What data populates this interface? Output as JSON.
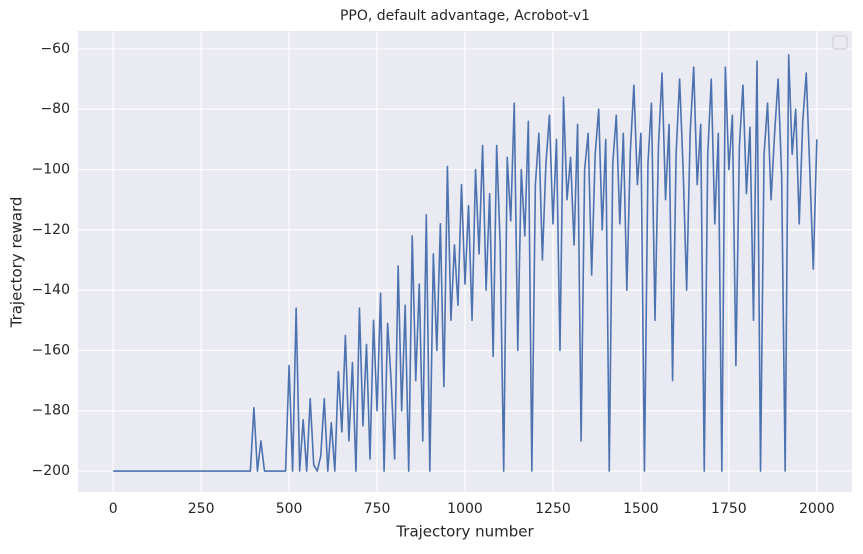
{
  "chart_data": {
    "type": "line",
    "title": "PPO, default advantage, Acrobot-v1",
    "x_label": "Trajectory number",
    "y_label": "Trajectory reward",
    "x": [
      0,
      10,
      20,
      30,
      40,
      50,
      60,
      70,
      80,
      90,
      100,
      110,
      120,
      130,
      140,
      150,
      160,
      170,
      180,
      190,
      200,
      210,
      220,
      230,
      240,
      250,
      260,
      270,
      280,
      290,
      300,
      310,
      320,
      330,
      340,
      350,
      360,
      370,
      380,
      390,
      400,
      410,
      420,
      430,
      440,
      450,
      460,
      470,
      480,
      490,
      500,
      510,
      520,
      530,
      540,
      550,
      560,
      570,
      580,
      590,
      600,
      610,
      620,
      630,
      640,
      650,
      660,
      670,
      680,
      690,
      700,
      710,
      720,
      730,
      740,
      750,
      760,
      770,
      780,
      790,
      800,
      810,
      820,
      830,
      840,
      850,
      860,
      870,
      880,
      890,
      900,
      910,
      920,
      930,
      940,
      950,
      960,
      970,
      980,
      990,
      1000,
      1010,
      1020,
      1030,
      1040,
      1050,
      1060,
      1070,
      1080,
      1090,
      1100,
      1110,
      1120,
      1130,
      1140,
      1150,
      1160,
      1170,
      1180,
      1190,
      1200,
      1210,
      1220,
      1230,
      1240,
      1250,
      1260,
      1270,
      1280,
      1290,
      1300,
      1310,
      1320,
      1330,
      1340,
      1350,
      1360,
      1370,
      1380,
      1390,
      1400,
      1410,
      1420,
      1430,
      1440,
      1450,
      1460,
      1470,
      1480,
      1490,
      1500,
      1510,
      1520,
      1530,
      1540,
      1550,
      1560,
      1570,
      1580,
      1590,
      1600,
      1610,
      1620,
      1630,
      1640,
      1650,
      1660,
      1670,
      1680,
      1690,
      1700,
      1710,
      1720,
      1730,
      1740,
      1750,
      1760,
      1770,
      1780,
      1790,
      1800,
      1810,
      1820,
      1830,
      1840,
      1850,
      1860,
      1870,
      1880,
      1890,
      1900,
      1910,
      1920,
      1930,
      1940,
      1950,
      1960,
      1970,
      1980,
      1990,
      2000
    ],
    "series": [
      {
        "color": "#4c72b0",
        "values": [
          -200,
          -200,
          -200,
          -200,
          -200,
          -200,
          -200,
          -200,
          -200,
          -200,
          -200,
          -200,
          -200,
          -200,
          -200,
          -200,
          -200,
          -200,
          -200,
          -200,
          -200,
          -200,
          -200,
          -200,
          -200,
          -200,
          -200,
          -200,
          -200,
          -200,
          -200,
          -200,
          -200,
          -200,
          -200,
          -200,
          -200,
          -200,
          -200,
          -200,
          -179,
          -200,
          -190,
          -200,
          -200,
          -200,
          -200,
          -200,
          -200,
          -200,
          -165,
          -200,
          -146,
          -200,
          -183,
          -200,
          -176,
          -198,
          -200,
          -195,
          -176,
          -200,
          -184,
          -200,
          -167,
          -187,
          -155,
          -190,
          -164,
          -200,
          -146,
          -185,
          -158,
          -196,
          -150,
          -180,
          -141,
          -200,
          -151,
          -170,
          -196,
          -132,
          -180,
          -145,
          -200,
          -122,
          -170,
          -138,
          -190,
          -115,
          -200,
          -128,
          -160,
          -118,
          -172,
          -99,
          -150,
          -125,
          -145,
          -105,
          -138,
          -112,
          -150,
          -100,
          -128,
          -92,
          -140,
          -108,
          -162,
          -92,
          -125,
          -200,
          -96,
          -117,
          -78,
          -160,
          -100,
          -122,
          -84,
          -200,
          -105,
          -88,
          -130,
          -98,
          -82,
          -118,
          -90,
          -160,
          -76,
          -110,
          -96,
          -125,
          -85,
          -190,
          -100,
          -88,
          -135,
          -95,
          -80,
          -120,
          -90,
          -200,
          -98,
          -82,
          -118,
          -88,
          -140,
          -94,
          -72,
          -105,
          -88,
          -200,
          -98,
          -78,
          -150,
          -92,
          -68,
          -110,
          -85,
          -170,
          -95,
          -70,
          -100,
          -140,
          -88,
          -66,
          -105,
          -85,
          -200,
          -95,
          -70,
          -118,
          -88,
          -200,
          -66,
          -100,
          -82,
          -165,
          -92,
          -72,
          -108,
          -86,
          -150,
          -64,
          -200,
          -95,
          -78,
          -110,
          -88,
          -70,
          -102,
          -200,
          -62,
          -95,
          -80,
          -118,
          -84,
          -68,
          -100,
          -133,
          -90
        ]
      }
    ],
    "xlim": [
      -100,
      2100
    ],
    "ylim": [
      -206.95,
      -54.05
    ],
    "xticks": [
      0,
      250,
      500,
      750,
      1000,
      1250,
      1500,
      1750,
      2000
    ],
    "yticks": [
      {
        "value": -200,
        "label": "−200"
      },
      {
        "value": -180,
        "label": "−180"
      },
      {
        "value": -160,
        "label": "−160"
      },
      {
        "value": -140,
        "label": "−140"
      },
      {
        "value": -120,
        "label": "−120"
      },
      {
        "value": -100,
        "label": "−100"
      },
      {
        "value": -80,
        "label": "−80"
      },
      {
        "value": -60,
        "label": "−60"
      }
    ],
    "grid": true
  }
}
